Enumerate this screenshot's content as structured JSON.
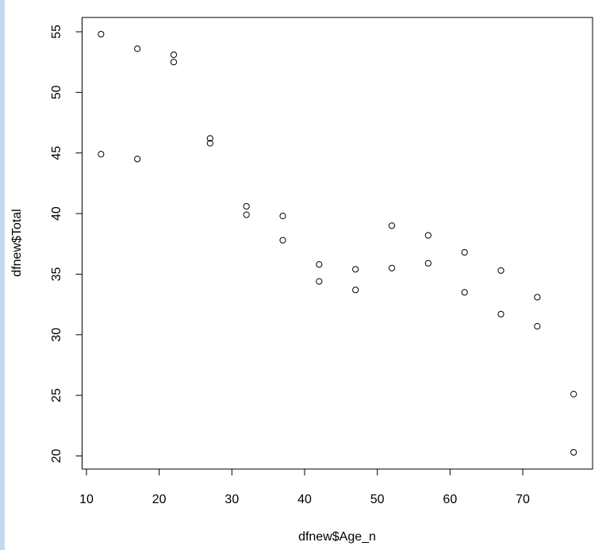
{
  "chart_data": {
    "type": "scatter",
    "xlabel": "dfnew$Age_n",
    "ylabel": "dfnew$Total",
    "x": [
      12,
      12,
      17,
      17,
      22,
      22,
      27,
      27,
      32,
      32,
      37,
      37,
      42,
      42,
      47,
      47,
      52,
      52,
      57,
      57,
      62,
      62,
      67,
      67,
      72,
      72,
      77,
      77
    ],
    "y": [
      54.8,
      44.9,
      53.6,
      44.5,
      53.1,
      52.5,
      46.2,
      45.8,
      40.6,
      39.9,
      39.8,
      37.8,
      35.8,
      34.4,
      35.4,
      33.7,
      39.0,
      35.5,
      38.2,
      35.9,
      36.8,
      33.5,
      35.3,
      31.7,
      33.1,
      30.7,
      25.1,
      20.3
    ],
    "color": "#000000",
    "xlim": [
      9.4,
      79.6
    ],
    "ylim": [
      18.92,
      56.18
    ],
    "xticks": [
      10,
      20,
      30,
      40,
      50,
      60,
      70
    ],
    "yticks": [
      20,
      25,
      30,
      35,
      40,
      45,
      50,
      55
    ]
  }
}
